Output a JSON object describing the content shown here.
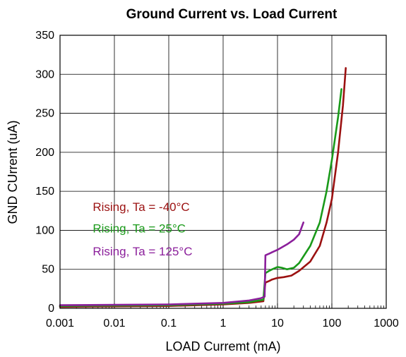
{
  "chart_data": {
    "type": "line",
    "title": "Ground Current vs. Load Current",
    "xlabel": "LOAD Curremt (mA)",
    "ylabel": "GND CUrrent (uA)",
    "x_scale": "log",
    "xlim": [
      0.001,
      1000
    ],
    "ylim": [
      0,
      350
    ],
    "x_ticks": [
      0.001,
      0.01,
      0.1,
      1,
      10,
      100,
      1000
    ],
    "x_tick_labels": [
      "0.001",
      "0.01",
      "0.1",
      "1",
      "10",
      "100",
      "1000"
    ],
    "y_ticks": [
      0,
      50,
      100,
      150,
      200,
      250,
      300,
      350
    ],
    "y_tick_labels": [
      "0",
      "50",
      "100",
      "150",
      "200",
      "250",
      "300",
      "350"
    ],
    "grid": true,
    "legend_position": "inside-left",
    "series": [
      {
        "name": "Rising, Ta = -40°C",
        "color": "#9b1111",
        "points": [
          [
            0.001,
            2
          ],
          [
            0.01,
            2.5
          ],
          [
            0.1,
            3
          ],
          [
            1,
            5
          ],
          [
            3,
            7
          ],
          [
            5.5,
            9
          ],
          [
            6,
            33
          ],
          [
            7,
            35
          ],
          [
            8,
            37
          ],
          [
            10,
            39
          ],
          [
            13,
            40
          ],
          [
            18,
            42
          ],
          [
            25,
            48
          ],
          [
            40,
            60
          ],
          [
            60,
            80
          ],
          [
            80,
            110
          ],
          [
            100,
            140
          ],
          [
            130,
            200
          ],
          [
            160,
            260
          ],
          [
            180,
            308
          ]
        ]
      },
      {
        "name": "Rising, Ta = 25°C",
        "color": "#1a9a1a",
        "points": [
          [
            0.001,
            3
          ],
          [
            0.01,
            3.5
          ],
          [
            0.1,
            4
          ],
          [
            1,
            6
          ],
          [
            3,
            8
          ],
          [
            5.5,
            11
          ],
          [
            6,
            45
          ],
          [
            7,
            48
          ],
          [
            8,
            50
          ],
          [
            10,
            53
          ],
          [
            12,
            52
          ],
          [
            15,
            50
          ],
          [
            20,
            52
          ],
          [
            25,
            58
          ],
          [
            40,
            80
          ],
          [
            60,
            110
          ],
          [
            80,
            150
          ],
          [
            100,
            190
          ],
          [
            130,
            245
          ],
          [
            150,
            281
          ]
        ]
      },
      {
        "name": "Rising, Ta = 125°C",
        "color": "#8b1f9b",
        "points": [
          [
            0.001,
            4
          ],
          [
            0.01,
            4.5
          ],
          [
            0.1,
            5
          ],
          [
            1,
            7
          ],
          [
            3,
            10
          ],
          [
            5,
            13
          ],
          [
            5.8,
            15
          ],
          [
            6,
            68
          ],
          [
            7,
            70
          ],
          [
            8,
            72
          ],
          [
            10,
            75
          ],
          [
            15,
            82
          ],
          [
            20,
            88
          ],
          [
            25,
            95
          ],
          [
            30,
            110
          ]
        ]
      }
    ]
  }
}
